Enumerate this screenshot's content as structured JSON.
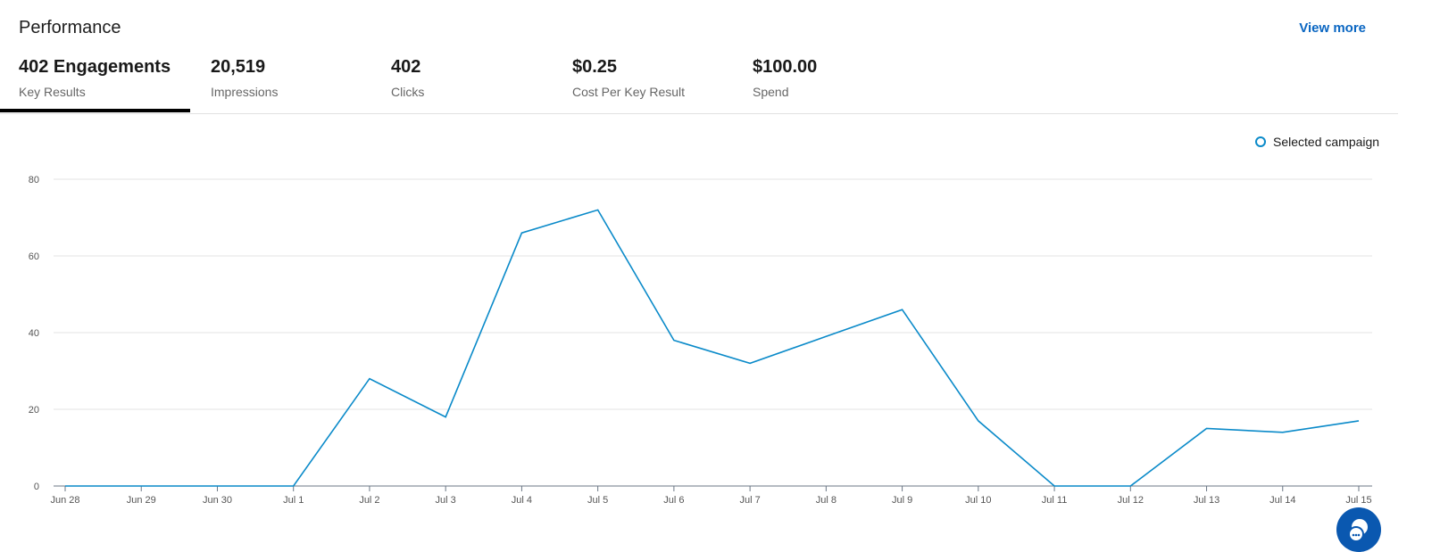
{
  "header": {
    "title": "Performance",
    "view_more": "View more"
  },
  "tabs": [
    {
      "value": "402 Engagements",
      "label": "Key Results",
      "active": true
    },
    {
      "value": "20,519",
      "label": "Impressions"
    },
    {
      "value": "402",
      "label": "Clicks"
    },
    {
      "value": "$0.25",
      "label": "Cost Per Key Result"
    },
    {
      "value": "$100.00",
      "label": "Spend"
    }
  ],
  "chart_data": {
    "type": "line",
    "x": [
      "Jun 28",
      "Jun 29",
      "Jun 30",
      "Jul 1",
      "Jul 2",
      "Jul 3",
      "Jul 4",
      "Jul 5",
      "Jul 6",
      "Jul 7",
      "Jul 8",
      "Jul 9",
      "Jul 10",
      "Jul 11",
      "Jul 12",
      "Jul 13",
      "Jul 14",
      "Jul 15"
    ],
    "series": [
      {
        "name": "Selected campaign",
        "color": "#0a8ac9",
        "values": [
          0,
          0,
          0,
          0,
          28,
          18,
          66,
          72,
          38,
          32,
          39,
          46,
          17,
          0,
          0,
          15,
          14,
          17
        ]
      }
    ],
    "yticks": [
      0,
      20,
      40,
      60,
      80
    ],
    "ylim": [
      0,
      80
    ],
    "grid": true,
    "legend": "top-right"
  },
  "colors": {
    "accent": "#0a66c2",
    "line": "#0a8ac9"
  }
}
